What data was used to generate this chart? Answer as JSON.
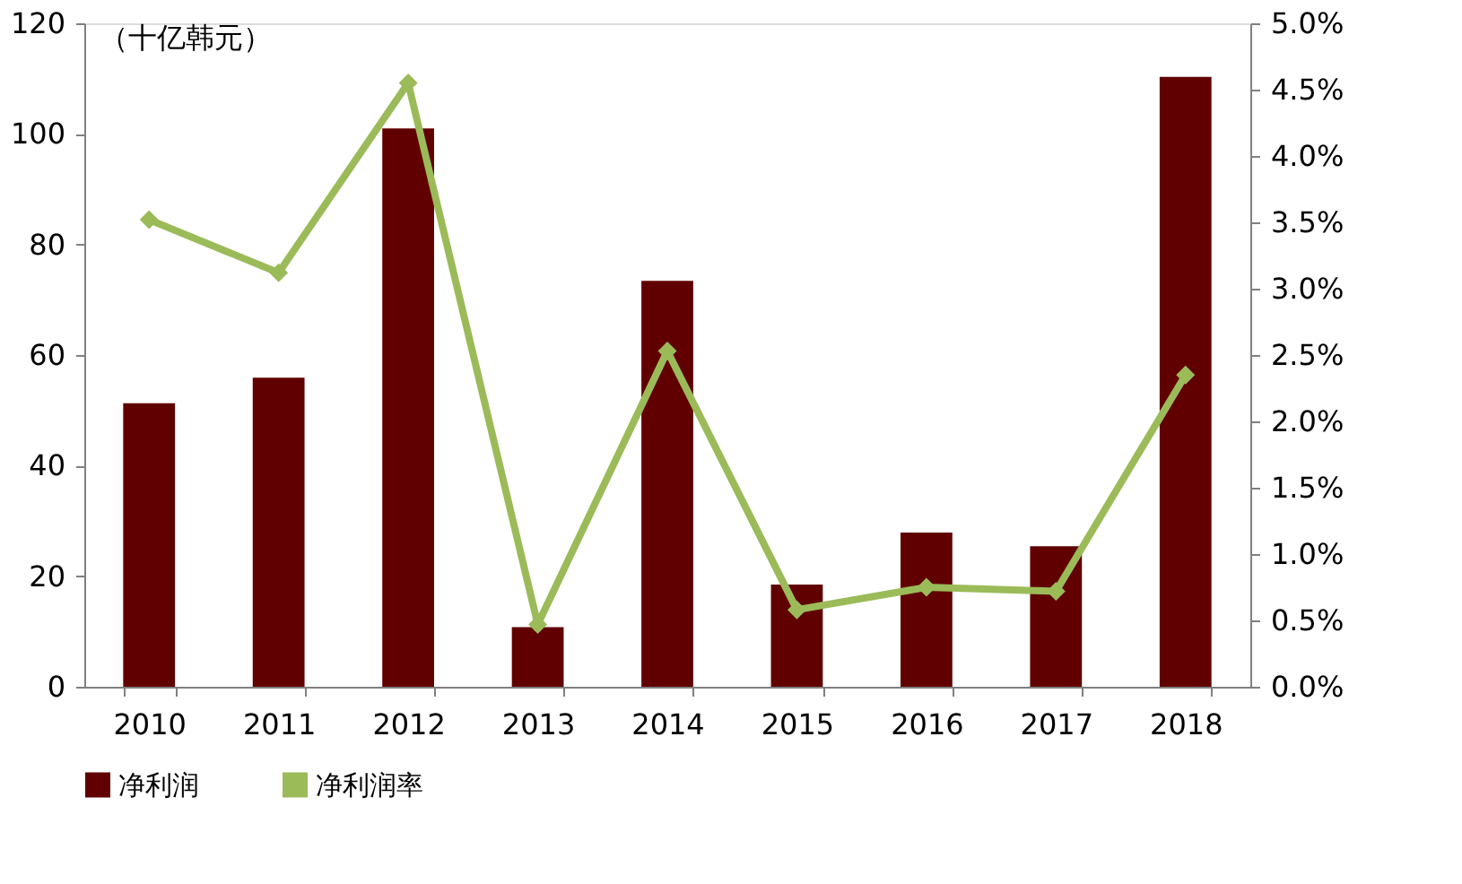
{
  "chart_data": {
    "type": "bar",
    "ylabel": "（十亿韩元）",
    "categories": [
      "2010",
      "2011",
      "2012",
      "2013",
      "2014",
      "2015",
      "2016",
      "2017",
      "2018"
    ],
    "series": [
      {
        "name": "净利润",
        "color": "#600000",
        "values": [
          51.3,
          55.9,
          101,
          10.8,
          73.4,
          18.5,
          27.9,
          25.4,
          110.3
        ]
      },
      {
        "name": "净利润率",
        "type": "line",
        "axis": "y2",
        "color": "#9bbb59",
        "values": [
          3.52,
          3.12,
          4.55,
          0.47,
          2.53,
          0.58,
          0.75,
          0.72,
          2.35
        ]
      }
    ],
    "ylim": [
      0,
      120
    ],
    "yticks": [
      0,
      20,
      40,
      60,
      80,
      100,
      120
    ],
    "y2lim": [
      0,
      5
    ],
    "y2ticks": [
      {
        "value": 0,
        "label": "0.0%"
      },
      {
        "value": 0.5,
        "label": "0.5%"
      },
      {
        "value": 1,
        "label": "1.0%"
      },
      {
        "value": 1.5,
        "label": "1.5%"
      },
      {
        "value": 2,
        "label": "2.0%"
      },
      {
        "value": 2.5,
        "label": "2.5%"
      },
      {
        "value": 3,
        "label": "3.0%"
      },
      {
        "value": 3.5,
        "label": "3.5%"
      },
      {
        "value": 4,
        "label": "4.0%"
      },
      {
        "value": 4.5,
        "label": "4.5%"
      },
      {
        "value": 5,
        "label": "5.0%"
      }
    ],
    "grid": false,
    "legend": "bottom",
    "marker": "diamond",
    "line_style": "solid"
  }
}
